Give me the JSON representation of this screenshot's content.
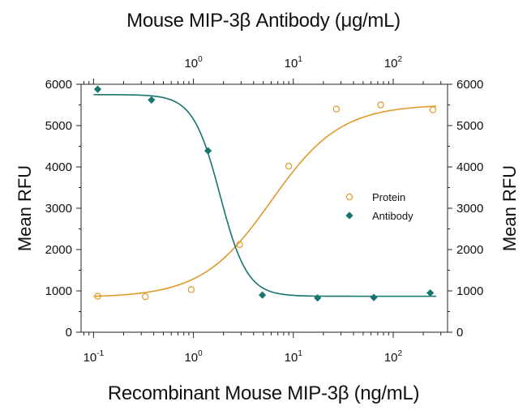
{
  "chart_data": {
    "type": "scatter",
    "title": "Mouse MIP-3β Antibody (μg/mL)",
    "xlabel": "Recombinant Mouse MIP-3β (ng/mL)",
    "ylabel_left": "Mean RFU",
    "ylabel_right": "Mean RFU",
    "x_scale": "log",
    "xlim": [
      0.075,
      350
    ],
    "ylim": [
      0,
      6000
    ],
    "y_ticks": [
      "0",
      "1000",
      "2000",
      "3000",
      "4000",
      "5000",
      "6000"
    ],
    "x_bottom_ticks": [
      {
        "base": "10",
        "exp": "-1",
        "value": 0.1
      },
      {
        "base": "10",
        "exp": "0",
        "value": 1
      },
      {
        "base": "10",
        "exp": "1",
        "value": 10
      },
      {
        "base": "10",
        "exp": "2",
        "value": 100
      }
    ],
    "x_top_ticks": [
      {
        "base": "10",
        "exp": "0",
        "value": 1
      },
      {
        "base": "10",
        "exp": "1",
        "value": 10
      },
      {
        "base": "10",
        "exp": "2",
        "value": 100
      }
    ],
    "legend_position": "right",
    "series": [
      {
        "name": "Protein",
        "marker": "open-circle",
        "color": "#e09a2a",
        "axis": "bottom",
        "points": [
          [
            0.11,
            870
          ],
          [
            0.33,
            860
          ],
          [
            0.95,
            1030
          ],
          [
            2.9,
            2120
          ],
          [
            9.0,
            4020
          ],
          [
            27,
            5400
          ],
          [
            75,
            5500
          ],
          [
            250,
            5380
          ]
        ],
        "fit": {
          "bottom": 840,
          "top": 5510,
          "ec50": 6.0,
          "hill": 1.25
        }
      },
      {
        "name": "Antibody",
        "marker": "filled-diamond",
        "color": "#16756e",
        "axis": "top",
        "points": [
          [
            0.11,
            5880
          ],
          [
            0.38,
            5620
          ],
          [
            1.4,
            4390
          ],
          [
            4.9,
            900
          ],
          [
            17.5,
            830
          ],
          [
            64,
            840
          ],
          [
            235,
            950
          ]
        ],
        "fit": {
          "bottom": 870,
          "top": 5750,
          "ec50": 1.85,
          "hill": 3.2
        }
      }
    ]
  }
}
